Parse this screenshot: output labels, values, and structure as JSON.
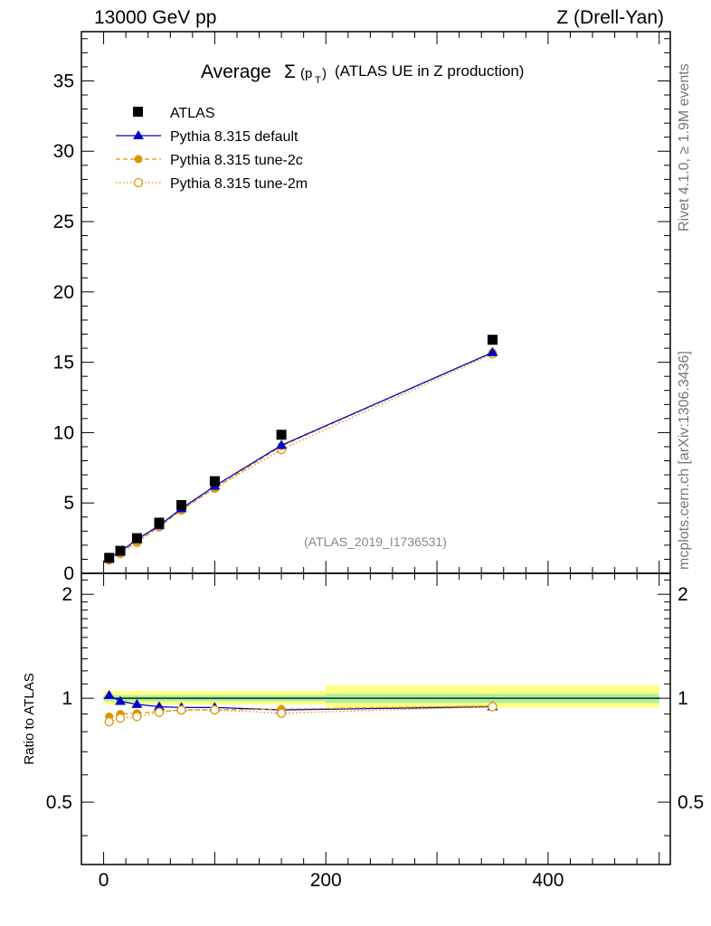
{
  "header": {
    "left": "13000 GeV pp",
    "right": "Z (Drell-Yan)"
  },
  "side_labels": {
    "rivet": "Rivet 4.1.0, ≥ 1.9M events",
    "mcplots": "mcplots.cern.ch [arXiv:1306.3436]"
  },
  "chart_data": [
    {
      "type": "scatter",
      "title_parts": {
        "pre": "Average",
        "sigma": "Σ",
        "open": "(p",
        "sub": "T",
        "close": ")",
        "post": "(ATLAS UE in Z production)"
      },
      "watermark": "(ATLAS_2019_I1736531)",
      "xlim": [
        -20,
        510
      ],
      "ylim": [
        0,
        38.5
      ],
      "y_ticks": [
        "0",
        "5",
        "10",
        "15",
        "20",
        "25",
        "30",
        "35"
      ],
      "x": [
        5,
        15,
        30,
        50,
        70,
        100,
        160,
        350
      ],
      "series": [
        {
          "name": "ATLAS",
          "values": [
            1.1,
            1.6,
            2.5,
            3.6,
            4.85,
            6.55,
            9.85,
            16.6
          ],
          "color": "#000000",
          "marker": "square"
        },
        {
          "name": "Pythia 8.315 default",
          "values": [
            1.1,
            1.55,
            2.4,
            3.4,
            4.6,
            6.2,
            9.1,
            15.7
          ],
          "color": "#0000cc",
          "marker": "triangle",
          "line": "solid"
        },
        {
          "name": "Pythia 8.315 tune-2c",
          "values": [
            0.95,
            1.45,
            2.25,
            3.3,
            4.5,
            6.05,
            9.05,
            15.7
          ],
          "color": "#e09400",
          "marker": "circle",
          "line": "dashed"
        },
        {
          "name": "Pythia 8.315 tune-2m",
          "values": [
            0.95,
            1.4,
            2.2,
            3.3,
            4.5,
            6.05,
            8.8,
            15.6
          ],
          "color": "#e09400",
          "marker": "open-circle",
          "line": "dotted"
        }
      ]
    },
    {
      "type": "scatter",
      "ylabel": "Ratio to ATLAS",
      "xlim": [
        -20,
        510
      ],
      "ylim": [
        0.33,
        2.3
      ],
      "y_ticks": [
        "0.5",
        "1",
        "2"
      ],
      "y_tick_values": [
        0.5,
        1,
        2
      ],
      "x_ticks": [
        "0",
        "200",
        "400"
      ],
      "x_tick_values": [
        0,
        200,
        400
      ],
      "x": [
        5,
        15,
        30,
        50,
        70,
        100,
        160,
        350
      ],
      "band": {
        "segments": [
          {
            "x0": 0,
            "x1": 200,
            "inner": [
              0.98,
              1.02
            ],
            "outer": [
              0.96,
              1.05
            ]
          },
          {
            "x0": 200,
            "x1": 500,
            "inner": [
              0.97,
              1.03
            ],
            "outer": [
              0.94,
              1.09
            ]
          }
        ]
      },
      "series": [
        {
          "name": "Pythia 8.315 default",
          "values": [
            1.02,
            0.98,
            0.96,
            0.945,
            0.94,
            0.94,
            0.925,
            0.945
          ]
        },
        {
          "name": "Pythia 8.315 tune-2c",
          "values": [
            0.885,
            0.9,
            0.905,
            0.915,
            0.925,
            0.925,
            0.93,
            0.95
          ]
        },
        {
          "name": "Pythia 8.315 tune-2m",
          "values": [
            0.855,
            0.875,
            0.885,
            0.91,
            0.925,
            0.925,
            0.905,
            0.945
          ]
        }
      ]
    }
  ]
}
